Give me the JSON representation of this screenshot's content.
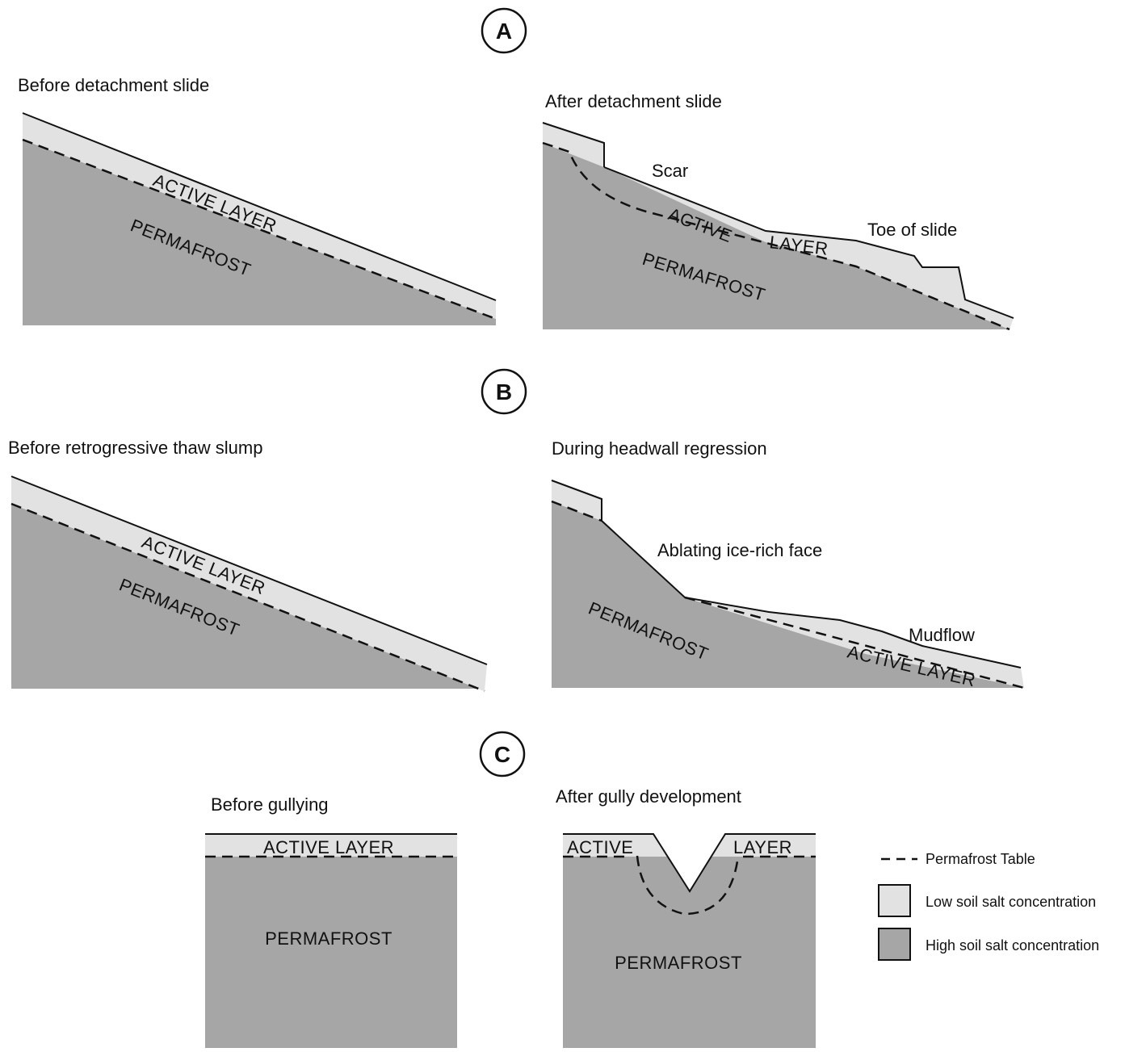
{
  "colors": {
    "high_salt": "#a6a6a6",
    "low_salt": "#e2e2e2",
    "line": "#111111",
    "background": "#ffffff"
  },
  "panels": {
    "a": {
      "letter": "A",
      "before": {
        "title": "Before detachment slide",
        "active_layer": "ACTIVE LAYER",
        "permafrost": "PERMAFROST"
      },
      "after": {
        "title": "After detachment slide",
        "scar": "Scar",
        "active_word": "ACTIVE",
        "layer_word": "LAYER",
        "toe": "Toe of slide",
        "permafrost": "PERMAFROST"
      }
    },
    "b": {
      "letter": "B",
      "before": {
        "title": "Before retrogressive thaw slump",
        "active_layer": "ACTIVE LAYER",
        "permafrost": "PERMAFROST"
      },
      "after": {
        "title": "During headwall regression",
        "face": "Ablating ice-rich face",
        "mudflow": "Mudflow",
        "permafrost": "PERMAFROST",
        "active_layer": "ACTIVE LAYER"
      }
    },
    "c": {
      "letter": "C",
      "before": {
        "title": "Before gullying",
        "active_layer": "ACTIVE LAYER",
        "permafrost": "PERMAFROST"
      },
      "after": {
        "title": "After gully development",
        "active_word": "ACTIVE",
        "layer_word": "LAYER",
        "permafrost": "PERMAFROST"
      }
    }
  },
  "legend": {
    "permafrost_table": "Permafrost Table",
    "low_salt": "Low soil salt concentration",
    "high_salt": "High soil salt concentration"
  }
}
